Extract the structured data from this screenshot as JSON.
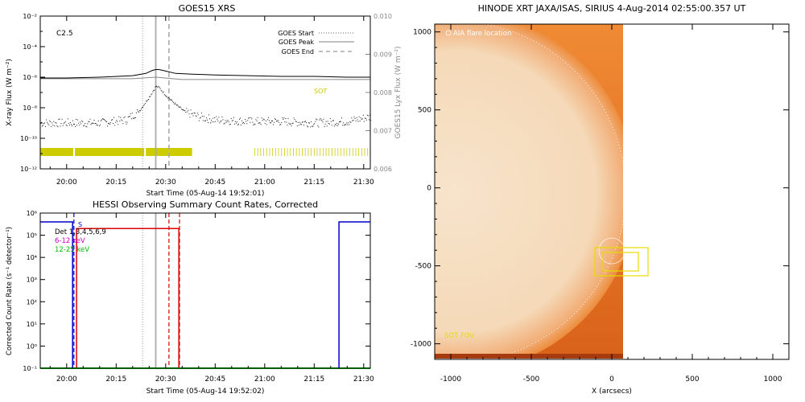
{
  "chart_data": [
    {
      "type": "line",
      "title": "GOES15 XRS",
      "xlabel": "Start Time (05-Aug-14 19:52:01)",
      "ylabel": "X-ray Flux (W m⁻²)",
      "ylabel_right": "GOES15 Lyx Flux (W m⁻²)",
      "x_ticks": [
        "20:00",
        "20:15",
        "20:30",
        "20:45",
        "21:00",
        "21:15",
        "21:30"
      ],
      "x_tick_minutes": [
        0,
        15,
        30,
        45,
        60,
        75,
        90
      ],
      "xlim_minutes": [
        -8,
        92
      ],
      "y_ticks": [
        "10⁻¹²",
        "10⁻¹⁰",
        "10⁻⁸",
        "10⁻⁶",
        "10⁻⁴",
        "10⁻²"
      ],
      "y_tick_exp": [
        -12,
        -10,
        -8,
        -6,
        -4,
        -2
      ],
      "ylim_log": [
        -12,
        -2
      ],
      "y2_ticks": [
        "0.006",
        "0.007",
        "0.008",
        "0.009",
        "0.010"
      ],
      "y2_tick_values": [
        0.006,
        0.007,
        0.008,
        0.009,
        0.01
      ],
      "y2lim": [
        0.006,
        0.01
      ],
      "flare_class": "C2.5",
      "sot_label": "SOT",
      "legend": [
        {
          "label": "GOES Start",
          "style": "dotted"
        },
        {
          "label": "GOES Peak",
          "style": "solid"
        },
        {
          "label": "GOES End",
          "style": "dashed"
        }
      ],
      "events_minutes": {
        "start": 23,
        "peak": 27,
        "end": 31
      },
      "long_channel_x": [
        -8,
        0,
        10,
        20,
        24,
        26,
        27,
        28,
        30,
        33,
        38,
        45,
        55,
        65,
        75,
        85,
        92
      ],
      "long_channel_log": [
        -6.05,
        -6.05,
        -6.0,
        -5.9,
        -5.75,
        -5.55,
        -5.5,
        -5.5,
        -5.6,
        -5.75,
        -5.8,
        -5.85,
        -5.9,
        -5.95,
        -5.95,
        -6.0,
        -6.0
      ],
      "lya_channel_x": [
        -8,
        20,
        27,
        35,
        92
      ],
      "lya_channel_log": [
        -6.1,
        -6.1,
        -6.0,
        -6.15,
        -6.15
      ],
      "short_channel_x": [
        -8,
        0,
        10,
        18,
        22,
        25,
        27,
        28,
        30,
        33,
        36,
        40,
        45,
        55,
        65,
        75,
        85,
        92
      ],
      "short_channel_log": [
        -9.0,
        -9.0,
        -9.0,
        -8.8,
        -8.2,
        -7.3,
        -6.6,
        -6.7,
        -7.2,
        -7.8,
        -8.3,
        -8.6,
        -8.8,
        -8.9,
        -8.9,
        -9.0,
        -8.9,
        -8.6
      ],
      "sot_coverage_minutes": [
        [
          -8,
          2
        ],
        [
          2.5,
          23.5
        ],
        [
          24,
          38
        ],
        [
          57,
          92
        ]
      ],
      "colors": {
        "data": "#000000",
        "lya": "#888888",
        "events": "#aaaaaa",
        "sot": "#cccc00"
      }
    },
    {
      "type": "line",
      "title": "HESSI Observing Summary Count Rates, Corrected",
      "xlabel": "Start Time (05-Aug-14 19:52:02)",
      "ylabel": "Corrected Count Rate (s⁻¹ detector⁻¹)",
      "x_ticks": [
        "20:00",
        "20:15",
        "20:30",
        "20:45",
        "21:00",
        "21:15",
        "21:30"
      ],
      "x_tick_minutes": [
        0,
        15,
        30,
        45,
        60,
        75,
        90
      ],
      "xlim_minutes": [
        -8,
        92
      ],
      "y_ticks": [
        "10⁻¹",
        "10⁰",
        "10¹",
        "10²",
        "10³",
        "10⁴",
        "10⁵",
        "10⁶"
      ],
      "y_tick_exp": [
        -1,
        0,
        1,
        2,
        3,
        4,
        5,
        6
      ],
      "ylim_log": [
        -1,
        6
      ],
      "legend": [
        {
          "label": "Det 1,3,4,5,6,9",
          "color": "#000000"
        },
        {
          "label": "6-12 keV",
          "color": "#cc00cc"
        },
        {
          "label": "12-25 keV",
          "color": "#00bb00"
        }
      ],
      "flag_label": "S",
      "series": [
        {
          "name": "6-12 keV",
          "color": "#dd0000",
          "segments": [
            [
              [
                3,
                -1
              ],
              [
                3,
                5.3
              ],
              [
                34,
                5.3
              ],
              [
                34,
                -1
              ]
            ]
          ]
        },
        {
          "name": "12-25 keV",
          "color": "#00bb00",
          "segments": [
            [
              [
                -8,
                -1
              ],
              [
                92,
                -1
              ]
            ]
          ]
        },
        {
          "name": "",
          "color": "#0000cc",
          "segments": [
            [
              [
                -8,
                5.6
              ],
              [
                1.8,
                5.6
              ],
              [
                1.8,
                -1
              ]
            ],
            [
              [
                82.5,
                -1
              ],
              [
                82.5,
                5.6
              ],
              [
                92,
                5.6
              ]
            ]
          ]
        }
      ],
      "dashed_lines": [
        {
          "minute": 2.2,
          "color": "#0000cc"
        },
        {
          "minute": 34.2,
          "color": "#dd0000"
        },
        {
          "minute": 31,
          "color": "#dd0000"
        }
      ],
      "events_minutes": {
        "start": 23,
        "peak": 27,
        "end": 31
      }
    },
    {
      "type": "image",
      "title": "HINODE XRT JAXA/ISAS, SIRIUS   4-Aug-2014 02:55:00.357 UT",
      "xlabel": "X (arcsecs)",
      "ylabel": "",
      "x_ticks": [
        "-1000",
        "-500",
        "0",
        "500",
        "1000"
      ],
      "x_tick_values": [
        -1000,
        -500,
        0,
        500,
        1000
      ],
      "y_ticks": [
        "-1000",
        "-500",
        "0",
        "500",
        "1000"
      ],
      "y_tick_values": [
        -1000,
        -500,
        0,
        500,
        1000
      ],
      "xlim": [
        -1100,
        1100
      ],
      "ylim": [
        -1100,
        1050
      ],
      "image_extent_x": [
        -1100,
        60
      ],
      "solar_radius_arcsec": 950,
      "annotation_aia": "AIA flare location",
      "annotation_sot": "SOT FOV",
      "sot_fov_box": [
        -110,
        -510,
        220,
        170
      ],
      "inner_box": [
        -60,
        -480,
        140,
        110
      ],
      "colors": {
        "disk": "#f7e2c8",
        "limb": "#f29a4c",
        "background": "#e0701c",
        "box": "#e5dc00"
      }
    }
  ]
}
